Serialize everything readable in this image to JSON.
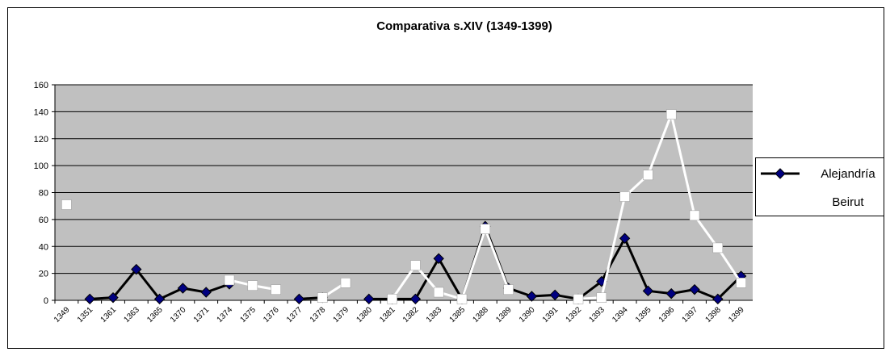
{
  "chart_data": {
    "type": "line",
    "title": "Comparativa s.XIV (1349-1399)",
    "categories": [
      "1349",
      "1351",
      "1361",
      "1363",
      "1365",
      "1370",
      "1371",
      "1374",
      "1375",
      "1376",
      "1377",
      "1378",
      "1379",
      "1380",
      "1381",
      "1382",
      "1383",
      "1385",
      "1388",
      "1389",
      "1390",
      "1391",
      "1392",
      "1393",
      "1394",
      "1395",
      "1396",
      "1397",
      "1398",
      "1399"
    ],
    "series": [
      {
        "name": "Alejandría",
        "color": "#000000",
        "marker_color": "#000080",
        "marker": "diamond",
        "values": [
          null,
          1,
          2,
          23,
          1,
          9,
          6,
          12,
          null,
          null,
          1,
          2,
          null,
          1,
          1,
          1,
          31,
          1,
          55,
          9,
          3,
          4,
          1,
          14,
          46,
          7,
          5,
          8,
          1,
          18
        ]
      },
      {
        "name": "Beirut",
        "color": "#ffffff",
        "marker_color": "#ffffff",
        "marker": "square",
        "values": [
          71,
          null,
          null,
          null,
          null,
          null,
          null,
          15,
          11,
          8,
          null,
          2,
          13,
          null,
          1,
          26,
          6,
          1,
          53,
          8,
          null,
          null,
          1,
          2,
          77,
          93,
          138,
          63,
          39,
          13
        ]
      }
    ],
    "ylim": [
      0,
      160
    ],
    "yticks": [
      0,
      20,
      40,
      60,
      80,
      100,
      120,
      140,
      160
    ],
    "grid": true,
    "legend": "right"
  }
}
